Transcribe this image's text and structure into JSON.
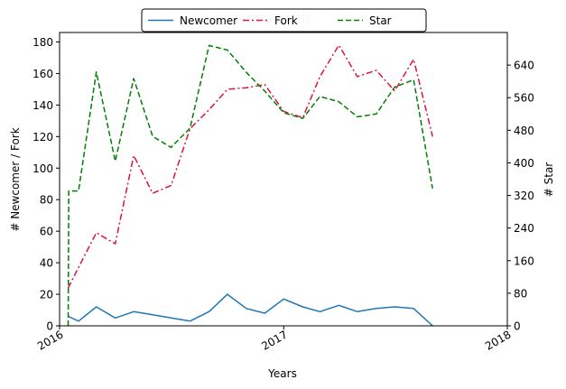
{
  "chart_data": {
    "type": "line",
    "title": "materials",
    "xlabel": "Years",
    "ylabel_left": "# Newcomer / Fork",
    "ylabel_right": "# Star",
    "xlim": [
      "2016-01-01",
      "2018-01-01"
    ],
    "xticks": [
      {
        "date": "2016-01-01",
        "label": "2016"
      },
      {
        "date": "2017-01-01",
        "label": "2017"
      },
      {
        "date": "2018-01-01",
        "label": "2018"
      }
    ],
    "ylim_left": [
      0,
      186
    ],
    "yticks_left": [
      0,
      20,
      40,
      60,
      80,
      100,
      120,
      140,
      160,
      180
    ],
    "ylim_right": [
      0,
      720
    ],
    "yticks_right": [
      0,
      80,
      160,
      240,
      320,
      400,
      480,
      560,
      640
    ],
    "legend": {
      "placement": "top-center",
      "entries": [
        {
          "name": "Newcomer",
          "style": "solid",
          "color": "#1f77b4"
        },
        {
          "name": "Fork",
          "style": "dashdot",
          "color": "#dc143c"
        },
        {
          "name": "Star",
          "style": "dashed",
          "color": "#008000"
        }
      ]
    },
    "series": [
      {
        "name": "Newcomer",
        "axis": "left",
        "color": "#1f77b4",
        "style": "solid",
        "x": [
          "2016-01-15",
          "2016-02-01",
          "2016-03-01",
          "2016-04-01",
          "2016-05-01",
          "2016-06-01",
          "2016-07-01",
          "2016-08-01",
          "2016-09-01",
          "2016-10-01",
          "2016-11-01",
          "2016-12-01",
          "2017-01-01",
          "2017-02-01",
          "2017-03-01",
          "2017-04-01",
          "2017-05-01",
          "2017-06-01",
          "2017-07-01",
          "2017-08-01",
          "2017-09-01"
        ],
        "y": [
          6,
          3,
          12,
          5,
          9,
          7,
          5,
          3,
          9,
          20,
          11,
          8,
          17,
          12,
          9,
          13,
          9,
          11,
          12,
          11,
          0
        ]
      },
      {
        "name": "Fork",
        "axis": "left",
        "color": "#dc143c",
        "style": "dashdot",
        "x": [
          "2016-01-15",
          "2016-02-01",
          "2016-03-01",
          "2016-04-01",
          "2016-05-01",
          "2016-06-01",
          "2016-07-01",
          "2016-08-01",
          "2016-09-01",
          "2016-10-01",
          "2016-11-01",
          "2016-12-01",
          "2017-01-01",
          "2017-02-01",
          "2017-03-01",
          "2017-04-01",
          "2017-05-01",
          "2017-06-01",
          "2017-07-01",
          "2017-08-01",
          "2017-09-01"
        ],
        "y": [
          24,
          37,
          59,
          52,
          108,
          84,
          89,
          125,
          137,
          150,
          151,
          153,
          136,
          132,
          158,
          178,
          158,
          162,
          149,
          169,
          120
        ]
      },
      {
        "name": "Star",
        "axis": "right",
        "color": "#008000",
        "style": "dashed",
        "x": [
          "2016-01-15",
          "2016-01-16",
          "2016-02-01",
          "2016-03-01",
          "2016-04-01",
          "2016-05-01",
          "2016-06-01",
          "2016-07-01",
          "2016-08-01",
          "2016-09-01",
          "2016-10-01",
          "2016-11-01",
          "2016-12-01",
          "2017-01-01",
          "2017-02-01",
          "2017-03-01",
          "2017-04-01",
          "2017-05-01",
          "2017-06-01",
          "2017-07-01",
          "2017-08-01",
          "2017-09-01"
        ],
        "y": [
          0,
          331,
          331,
          623,
          404,
          607,
          465,
          438,
          485,
          688,
          677,
          622,
          576,
          523,
          509,
          563,
          550,
          513,
          520,
          586,
          604,
          337
        ]
      }
    ]
  }
}
